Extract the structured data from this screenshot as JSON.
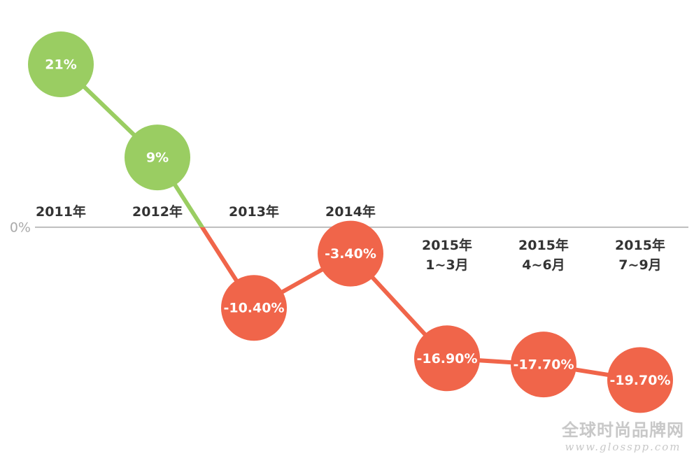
{
  "chart_data": {
    "type": "line",
    "categories": [
      "2011年",
      "2012年",
      "2013年",
      "2014年",
      "2015年\n1~3月",
      "2015年\n4~6月",
      "2015年\n7~9月"
    ],
    "values": [
      21,
      9,
      -10.4,
      -3.4,
      -16.9,
      -17.7,
      -19.7
    ],
    "value_labels": [
      "21%",
      "9%",
      "-10.40%",
      "-3.40%",
      "-16.90%",
      "-17.70%",
      "-19.70%"
    ],
    "positive_color": "#9acd62",
    "negative_color": "#f0654a",
    "ylim": [
      -30.4,
      29.3
    ],
    "yticks": [
      {
        "value": 0,
        "label": "0%"
      }
    ]
  },
  "watermark": {
    "title": "全球时尚品牌网",
    "url": "www.glosspp.com"
  }
}
